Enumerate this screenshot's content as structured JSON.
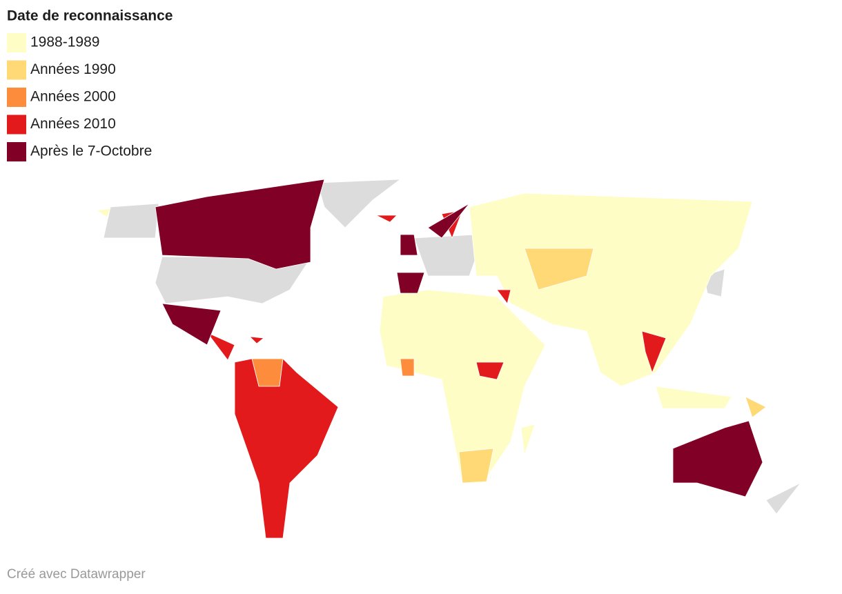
{
  "legend": {
    "title": "Date de reconnaissance",
    "items": [
      {
        "label": "1988-1989",
        "color": "#fffdc6"
      },
      {
        "label": "Années 1990",
        "color": "#fed976"
      },
      {
        "label": "Années 2000",
        "color": "#fd8d3c"
      },
      {
        "label": "Années 2010",
        "color": "#e31a1c"
      },
      {
        "label": "Après le 7-Octobre",
        "color": "#800026"
      }
    ]
  },
  "footer": "Créé avec Datawrapper"
}
